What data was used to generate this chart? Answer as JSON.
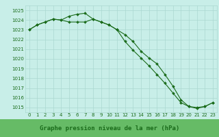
{
  "line1": {
    "x": [
      0,
      1,
      2,
      3,
      4,
      5,
      6,
      7,
      8,
      9,
      10,
      11,
      12,
      13,
      14,
      15,
      16,
      17,
      18,
      19,
      20,
      21,
      22,
      23
    ],
    "y": [
      1023.0,
      1023.5,
      1023.8,
      1024.1,
      1024.0,
      1023.8,
      1023.8,
      1023.8,
      1024.1,
      1023.8,
      1023.5,
      1023.0,
      1022.5,
      1021.8,
      1020.8,
      1020.1,
      1019.5,
      1018.4,
      1017.2,
      1015.8,
      1015.1,
      1015.0,
      1015.1,
      1015.5
    ]
  },
  "line2": {
    "x": [
      0,
      1,
      2,
      3,
      4,
      5,
      6,
      7,
      8,
      9,
      10,
      11,
      12,
      13,
      14,
      15,
      16,
      17,
      18,
      19,
      20,
      21,
      22,
      23
    ],
    "y": [
      1023.0,
      1023.5,
      1023.8,
      1024.1,
      1024.0,
      1024.4,
      1024.6,
      1024.7,
      1024.1,
      1023.8,
      1023.5,
      1023.0,
      1021.8,
      1020.9,
      1020.1,
      1019.3,
      1018.4,
      1017.5,
      1016.5,
      1015.5,
      1015.1,
      1014.9,
      1015.1,
      1015.5
    ]
  },
  "ylim": [
    1014.5,
    1025.5
  ],
  "yticks": [
    1015,
    1016,
    1017,
    1018,
    1019,
    1020,
    1021,
    1022,
    1023,
    1024,
    1025
  ],
  "xlim": [
    -0.5,
    23.5
  ],
  "xticks": [
    0,
    1,
    2,
    3,
    4,
    5,
    6,
    7,
    8,
    9,
    10,
    11,
    12,
    13,
    14,
    15,
    16,
    17,
    18,
    19,
    20,
    21,
    22,
    23
  ],
  "line_color": "#1a6b1a",
  "bg_color": "#c8eee8",
  "grid_color": "#aad8d0",
  "xlabel": "Graphe pression niveau de la mer (hPa)",
  "xlabel_color": "#1a6b1a",
  "xlabel_bg": "#66bb66",
  "marker": "D",
  "markersize": 2.0,
  "linewidth": 0.8,
  "tick_fontsize": 5.0,
  "xlabel_fontsize": 6.5
}
